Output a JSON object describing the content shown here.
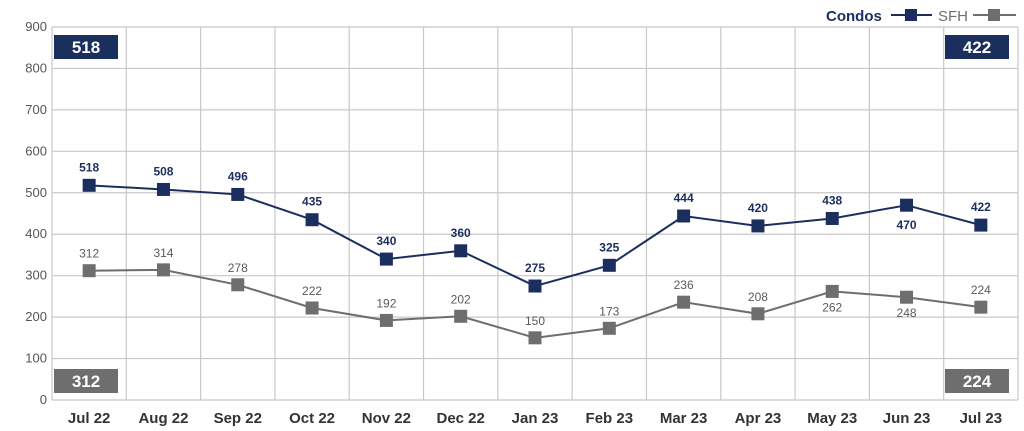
{
  "chart_data": {
    "type": "line",
    "categories": [
      "Jul 22",
      "Aug 22",
      "Sep 22",
      "Oct 22",
      "Nov 22",
      "Dec 22",
      "Jan 23",
      "Feb 23",
      "Mar 23",
      "Apr 23",
      "May 23",
      "Jun 23",
      "Jul 23"
    ],
    "ylim": [
      0,
      900
    ],
    "yticks": [
      "0",
      "100",
      "200",
      "300",
      "400",
      "500",
      "600",
      "700",
      "800",
      "900"
    ],
    "grid": true,
    "legend_position": "top-right",
    "series": [
      {
        "name": "Condos",
        "color": "#1b2f5e",
        "values": [
          518,
          508,
          496,
          435,
          340,
          360,
          275,
          325,
          444,
          420,
          438,
          470,
          422
        ],
        "labels": [
          "518",
          "508",
          "496",
          "435",
          "340",
          "360",
          "275",
          "325",
          "444",
          "420",
          "438",
          "470",
          "422"
        ]
      },
      {
        "name": "SFH",
        "color": "#6e6e6e",
        "values": [
          312,
          314,
          278,
          222,
          192,
          202,
          150,
          173,
          236,
          208,
          262,
          248,
          224
        ],
        "labels": [
          "312",
          "314",
          "278",
          "222",
          "192",
          "202",
          "150",
          "173",
          "236",
          "208",
          "262",
          "248",
          "224"
        ]
      }
    ],
    "callouts": {
      "condos_start": "518",
      "condos_end": "422",
      "sfh_start": "312",
      "sfh_end": "224"
    }
  }
}
